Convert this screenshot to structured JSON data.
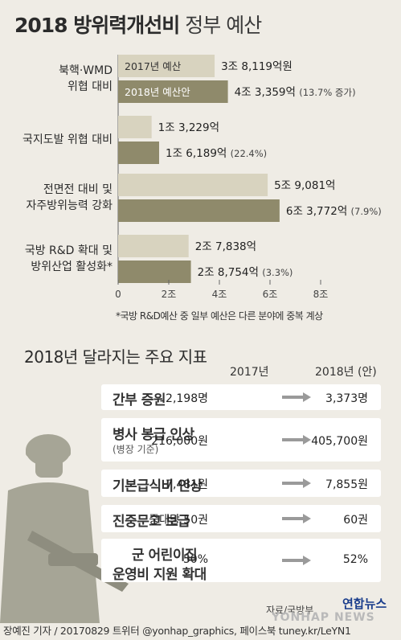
{
  "title": {
    "bold": "2018 방위력개선비",
    "light": "정부 예산"
  },
  "chart_data": {
    "type": "bar",
    "orientation": "horizontal",
    "units": "조원",
    "xlim": [
      0,
      8
    ],
    "ticks": [
      {
        "v": 0,
        "label": "0"
      },
      {
        "v": 2,
        "label": "2조"
      },
      {
        "v": 4,
        "label": "4조"
      },
      {
        "v": 6,
        "label": "6조"
      },
      {
        "v": 8,
        "label": "8조"
      }
    ],
    "legend": {
      "y2017": "2017년 예산",
      "y2018": "2018년 예산안"
    },
    "colors": {
      "y2017": "#d8d3bf",
      "y2018": "#8f8a6b"
    },
    "categories": [
      {
        "label1": "북핵·WMD",
        "label2": "위협 대비",
        "v2017": 3.8119,
        "v2018": 4.3359,
        "t2017": "3조 8,119억원",
        "t2018": "4조 3,359억",
        "pct": "(13.7% 증가)"
      },
      {
        "label1": "국지도발 위협 대비",
        "label2": "",
        "v2017": 1.3229,
        "v2018": 1.6189,
        "t2017": "1조 3,229억",
        "t2018": "1조 6,189억",
        "pct": "(22.4%)"
      },
      {
        "label1": "전면전 대비 및",
        "label2": "자주방위능력 강화",
        "v2017": 5.9081,
        "v2018": 6.3772,
        "t2017": "5조 9,081억",
        "t2018": "6조 3,772억",
        "pct": "(7.9%)"
      },
      {
        "label1": "국방 R&D 확대 및",
        "label2": "방위산업 활성화*",
        "v2017": 2.7838,
        "v2018": 2.8754,
        "t2017": "2조 7,838억",
        "t2018": "2조 8,754억",
        "pct": "(3.3%)"
      }
    ]
  },
  "footnote": "*국방 R&D예산 중 일부 예산은 다른 분야에 중복 계상",
  "indicators": {
    "heading": "2018년 달라지는 주요 지표",
    "col2017": "2017년",
    "col2018": "2018년 (안)",
    "rows": [
      {
        "label": "간부 증원",
        "sub": "",
        "v2017": "2,198명",
        "v2018": "3,373명"
      },
      {
        "label": "병사 봉급 인상",
        "sub": "(병장 기준)",
        "v2017": "216,000원",
        "v2018": "405,700원"
      },
      {
        "label": "기본급식비 인상",
        "sub": "",
        "v2017": "7,481원",
        "v2018": "7,855원"
      },
      {
        "label": "진중문고 보급",
        "sub": "",
        "v2017": "중대당 50권",
        "v2018": "60권"
      },
      {
        "label": "군 어린이집",
        "label2": "운영비 지원 확대",
        "sub": "",
        "v2017": "50%",
        "v2018": "52%"
      }
    ]
  },
  "source": "자료/국방부",
  "logo": "연합뉴스",
  "watermark": "YONHAP NEWS",
  "credit": "장예진 기자 / 20170829 트위터 @yonhap_graphics, 페이스북 tuney.kr/LeYN1"
}
